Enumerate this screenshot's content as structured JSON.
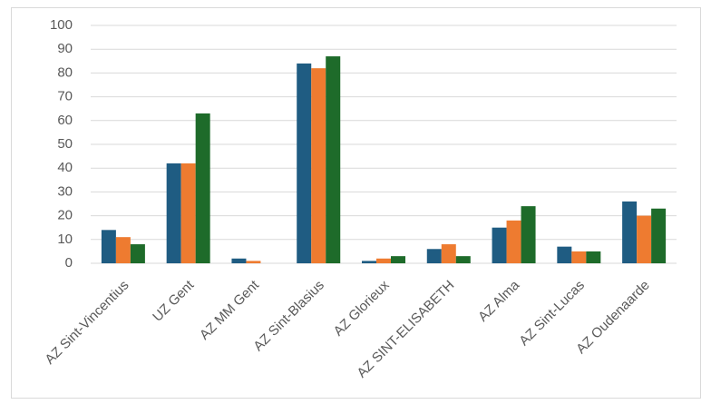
{
  "chart_data": {
    "type": "bar",
    "categories": [
      "AZ Sint-Vincentius",
      "UZ Gent",
      "AZ MM Gent",
      "AZ Sint-Blasius",
      "AZ Glorieux",
      "AZ SINT-ELISABETH",
      "AZ Alma",
      "AZ Sint-Lucas",
      "AZ Oudenaarde"
    ],
    "series": [
      {
        "color": "#1f5c82",
        "values": [
          14,
          42,
          2,
          84,
          1,
          6,
          15,
          7,
          26
        ]
      },
      {
        "color": "#ee7b30",
        "values": [
          11,
          42,
          1,
          82,
          2,
          8,
          18,
          5,
          20
        ]
      },
      {
        "color": "#1e6b2a",
        "values": [
          8,
          63,
          0,
          87,
          3,
          3,
          24,
          5,
          23
        ]
      }
    ],
    "ylim": [
      0,
      100
    ],
    "yticks": [
      0,
      10,
      20,
      30,
      40,
      50,
      60,
      70,
      80,
      90,
      100
    ],
    "grid": true
  }
}
